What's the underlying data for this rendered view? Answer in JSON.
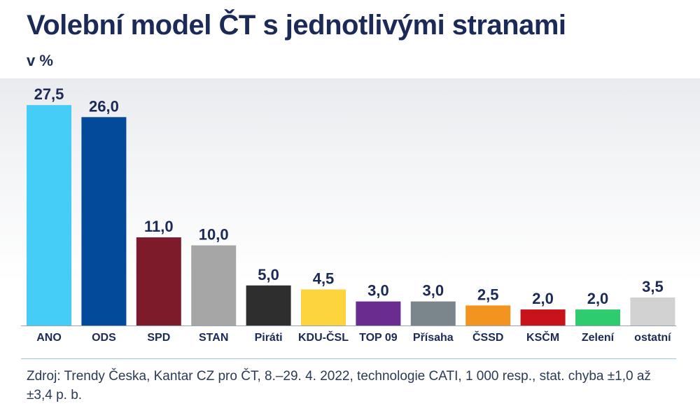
{
  "chart_data": {
    "type": "bar",
    "title": "Volební model ČT s jednotlivými stranami",
    "subtitle": "v %",
    "categories": [
      "ANO",
      "ODS",
      "SPD",
      "STAN",
      "Piráti",
      "KDU-ČSL",
      "TOP 09",
      "Přísaha",
      "ČSSD",
      "KSČM",
      "Zelení",
      "ostatní"
    ],
    "values": [
      27.5,
      26.0,
      11.0,
      10.0,
      5.0,
      4.5,
      3.0,
      3.0,
      2.5,
      2.0,
      2.0,
      3.5
    ],
    "value_labels": [
      "27,5",
      "26,0",
      "11,0",
      "10,0",
      "5,0",
      "4,5",
      "3,0",
      "3,0",
      "2,5",
      "2,0",
      "2,0",
      "3,5"
    ],
    "colors": [
      "#45cdf8",
      "#034a9b",
      "#7e1b2a",
      "#a6a6a6",
      "#2e2e2e",
      "#fdd33e",
      "#6a2c91",
      "#7b858c",
      "#f39320",
      "#c9131a",
      "#2fcb6f",
      "#d2d2d2"
    ],
    "ylim": [
      0,
      30
    ],
    "grid": false,
    "legend": "none",
    "source": "Zdroj: Trendy Česka, Kantar CZ pro ČT, 8.–29. 4. 2022, technologie CATI, 1 000 resp., stat. chyba ±1,0 až ±3,4 p. b."
  }
}
